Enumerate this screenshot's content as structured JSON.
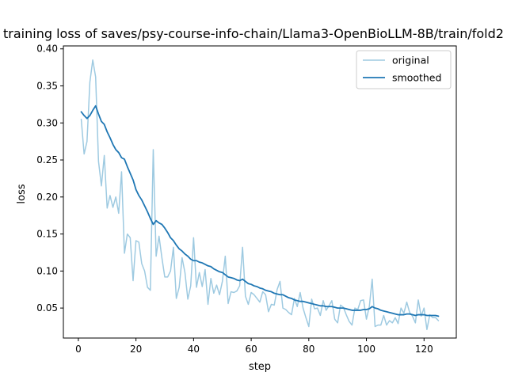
{
  "chart_data": {
    "type": "line",
    "title": "training loss of saves/psy-course-info-chain/Llama3-OpenBioLLM-8B/train/fold2",
    "xlabel": "step",
    "ylabel": "loss",
    "xlim": [
      -5.2,
      131.2
    ],
    "ylim": [
      0.0095,
      0.404
    ],
    "xticks": [
      0,
      20,
      40,
      60,
      80,
      100,
      120
    ],
    "yticks": [
      0.05,
      0.1,
      0.15,
      0.2,
      0.25,
      0.3,
      0.35,
      0.4
    ],
    "ytick_labels": [
      "0.05",
      "0.10",
      "0.15",
      "0.20",
      "0.25",
      "0.30",
      "0.35",
      "0.40"
    ],
    "legend_position": "top-right",
    "series": [
      {
        "name": "original",
        "color": "#9ecae1",
        "x": [
          1,
          2,
          3,
          4,
          5,
          6,
          7,
          8,
          9,
          10,
          11,
          12,
          13,
          14,
          15,
          16,
          17,
          18,
          19,
          20,
          21,
          22,
          23,
          24,
          25,
          26,
          27,
          28,
          29,
          30,
          31,
          32,
          33,
          34,
          35,
          36,
          37,
          38,
          39,
          40,
          41,
          42,
          43,
          44,
          45,
          46,
          47,
          48,
          49,
          50,
          51,
          52,
          53,
          54,
          55,
          56,
          57,
          58,
          59,
          60,
          61,
          62,
          63,
          64,
          65,
          66,
          67,
          68,
          69,
          70,
          71,
          72,
          73,
          74,
          75,
          76,
          77,
          78,
          79,
          80,
          81,
          82,
          83,
          84,
          85,
          86,
          87,
          88,
          89,
          90,
          91,
          92,
          93,
          94,
          95,
          96,
          97,
          98,
          99,
          100,
          101,
          102,
          103,
          104,
          105,
          106,
          107,
          108,
          109,
          110,
          111,
          112,
          113,
          114,
          115,
          116,
          117,
          118,
          119,
          120,
          121,
          122,
          123,
          124,
          125
        ],
        "values": [
          0.305,
          0.258,
          0.275,
          0.355,
          0.385,
          0.362,
          0.248,
          0.215,
          0.256,
          0.185,
          0.202,
          0.186,
          0.2,
          0.178,
          0.234,
          0.124,
          0.15,
          0.145,
          0.087,
          0.141,
          0.139,
          0.11,
          0.1,
          0.078,
          0.074,
          0.264,
          0.12,
          0.147,
          0.118,
          0.092,
          0.092,
          0.1,
          0.132,
          0.063,
          0.078,
          0.118,
          0.098,
          0.062,
          0.08,
          0.145,
          0.078,
          0.098,
          0.079,
          0.102,
          0.055,
          0.09,
          0.07,
          0.081,
          0.068,
          0.086,
          0.12,
          0.056,
          0.072,
          0.071,
          0.073,
          0.08,
          0.132,
          0.066,
          0.055,
          0.071,
          0.068,
          0.063,
          0.058,
          0.072,
          0.068,
          0.045,
          0.055,
          0.054,
          0.075,
          0.086,
          0.05,
          0.048,
          0.044,
          0.041,
          0.063,
          0.052,
          0.071,
          0.05,
          0.037,
          0.025,
          0.062,
          0.049,
          0.05,
          0.04,
          0.06,
          0.047,
          0.053,
          0.06,
          0.035,
          0.03,
          0.054,
          0.051,
          0.041,
          0.032,
          0.027,
          0.05,
          0.048,
          0.06,
          0.061,
          0.035,
          0.052,
          0.089,
          0.025,
          0.027,
          0.027,
          0.04,
          0.027,
          0.033,
          0.03,
          0.037,
          0.029,
          0.05,
          0.043,
          0.058,
          0.044,
          0.039,
          0.03,
          0.061,
          0.039,
          0.05,
          0.021,
          0.041,
          0.037,
          0.037,
          0.033
        ]
      },
      {
        "name": "smoothed",
        "color": "#1f77b4",
        "x": [
          1,
          2,
          3,
          4,
          5,
          6,
          7,
          8,
          9,
          10,
          11,
          12,
          13,
          14,
          15,
          16,
          17,
          18,
          19,
          20,
          21,
          22,
          23,
          24,
          25,
          26,
          27,
          28,
          29,
          30,
          31,
          32,
          33,
          34,
          35,
          36,
          37,
          38,
          39,
          40,
          41,
          42,
          43,
          44,
          45,
          46,
          47,
          48,
          49,
          50,
          51,
          52,
          53,
          54,
          55,
          56,
          57,
          58,
          59,
          60,
          61,
          62,
          63,
          64,
          65,
          66,
          67,
          68,
          69,
          70,
          71,
          72,
          73,
          74,
          75,
          76,
          77,
          78,
          79,
          80,
          81,
          82,
          83,
          84,
          85,
          86,
          87,
          88,
          89,
          90,
          91,
          92,
          93,
          94,
          95,
          96,
          97,
          98,
          99,
          100,
          101,
          102,
          103,
          104,
          105,
          106,
          107,
          108,
          109,
          110,
          111,
          112,
          113,
          114,
          115,
          116,
          117,
          118,
          119,
          120,
          121,
          122,
          123,
          124,
          125
        ],
        "values": [
          0.315,
          0.31,
          0.306,
          0.31,
          0.317,
          0.323,
          0.312,
          0.302,
          0.298,
          0.288,
          0.28,
          0.271,
          0.264,
          0.26,
          0.253,
          0.251,
          0.241,
          0.232,
          0.223,
          0.21,
          0.202,
          0.196,
          0.188,
          0.18,
          0.171,
          0.163,
          0.168,
          0.165,
          0.163,
          0.158,
          0.152,
          0.145,
          0.141,
          0.135,
          0.13,
          0.127,
          0.123,
          0.12,
          0.116,
          0.114,
          0.114,
          0.112,
          0.111,
          0.109,
          0.107,
          0.106,
          0.103,
          0.101,
          0.099,
          0.098,
          0.095,
          0.092,
          0.091,
          0.09,
          0.088,
          0.087,
          0.089,
          0.086,
          0.083,
          0.082,
          0.08,
          0.079,
          0.077,
          0.076,
          0.074,
          0.073,
          0.072,
          0.07,
          0.069,
          0.068,
          0.068,
          0.066,
          0.064,
          0.063,
          0.061,
          0.06,
          0.059,
          0.059,
          0.058,
          0.057,
          0.056,
          0.055,
          0.054,
          0.053,
          0.053,
          0.052,
          0.052,
          0.052,
          0.051,
          0.05,
          0.05,
          0.05,
          0.049,
          0.048,
          0.047,
          0.047,
          0.047,
          0.047,
          0.048,
          0.048,
          0.049,
          0.052,
          0.05,
          0.049,
          0.047,
          0.046,
          0.045,
          0.044,
          0.043,
          0.042,
          0.041,
          0.041,
          0.041,
          0.042,
          0.042,
          0.041,
          0.04,
          0.041,
          0.041,
          0.041,
          0.04,
          0.04,
          0.04,
          0.04,
          0.039
        ]
      }
    ]
  }
}
